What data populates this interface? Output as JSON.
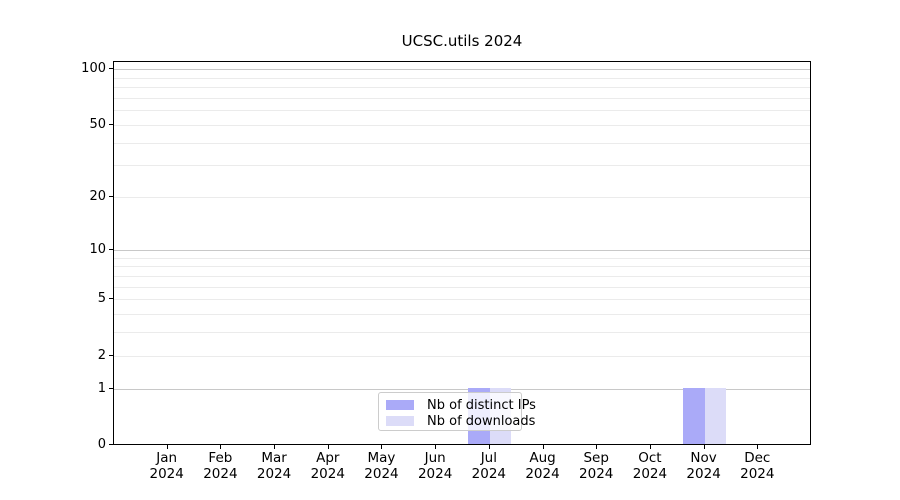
{
  "title": "UCSC.utils 2024",
  "legend": {
    "items": [
      {
        "label": "Nb of distinct IPs",
        "color": "#aaaaf8"
      },
      {
        "label": "Nb of downloads",
        "color": "#dcdcf8"
      }
    ]
  },
  "chart_data": {
    "type": "bar",
    "title": "UCSC.utils 2024",
    "categories": [
      "Jan 2024",
      "Feb 2024",
      "Mar 2024",
      "Apr 2024",
      "May 2024",
      "Jun 2024",
      "Jul 2024",
      "Aug 2024",
      "Sep 2024",
      "Oct 2024",
      "Nov 2024",
      "Dec 2024"
    ],
    "series": [
      {
        "name": "Nb of distinct IPs",
        "color": "#aaaaf8",
        "values": [
          0,
          0,
          0,
          0,
          0,
          0,
          1,
          0,
          0,
          0,
          1,
          0
        ]
      },
      {
        "name": "Nb of downloads",
        "color": "#dcdcf8",
        "values": [
          0,
          0,
          0,
          0,
          0,
          0,
          1,
          0,
          0,
          0,
          1,
          0
        ]
      }
    ],
    "yscale": "log1p",
    "ylim": [
      0,
      110
    ],
    "yticks": [
      0,
      1,
      2,
      5,
      10,
      20,
      50,
      100
    ],
    "major_gridlines": [
      1,
      10,
      100
    ],
    "minor_gridlines": [
      2,
      3,
      4,
      5,
      6,
      7,
      8,
      9,
      20,
      30,
      40,
      50,
      60,
      70,
      80,
      90
    ],
    "grid_color_major": "#c8c8c8",
    "grid_color_minor": "#ebebeb",
    "xlabel": "",
    "ylabel": "",
    "legend_position": "lower center",
    "grid": "horizontal"
  }
}
